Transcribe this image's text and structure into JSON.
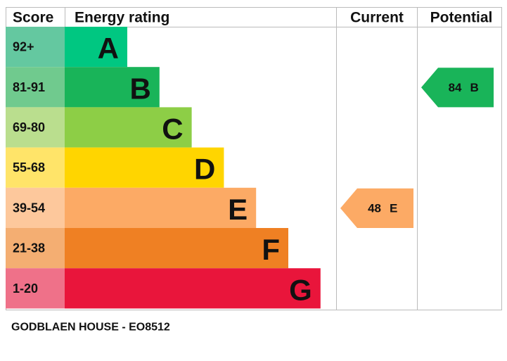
{
  "chart_data": {
    "type": "epc",
    "headers": {
      "score": "Score",
      "rating": "Energy rating",
      "current": "Current",
      "potential": "Potential"
    },
    "bands": [
      {
        "score": "92+",
        "letter": "A",
        "color": "#00c781",
        "score_color": "#64c8a0"
      },
      {
        "score": "81-91",
        "letter": "B",
        "color": "#19b459",
        "score_color": "#70ca8e"
      },
      {
        "score": "69-80",
        "letter": "C",
        "color": "#8dce46",
        "score_color": "#bade8e"
      },
      {
        "score": "55-68",
        "letter": "D",
        "color": "#ffd500",
        "score_color": "#ffe469"
      },
      {
        "score": "39-54",
        "letter": "E",
        "color": "#fcaa65",
        "score_color": "#fdc89c"
      },
      {
        "score": "21-38",
        "letter": "F",
        "color": "#ef8023",
        "score_color": "#f4ae72"
      },
      {
        "score": "1-20",
        "letter": "G",
        "color": "#e9153b",
        "score_color": "#ef7189"
      }
    ],
    "current": {
      "value": 48,
      "letter": "E"
    },
    "potential": {
      "value": 84,
      "letter": "B"
    },
    "footer": "GODBLAEN HOUSE - EO8512"
  }
}
